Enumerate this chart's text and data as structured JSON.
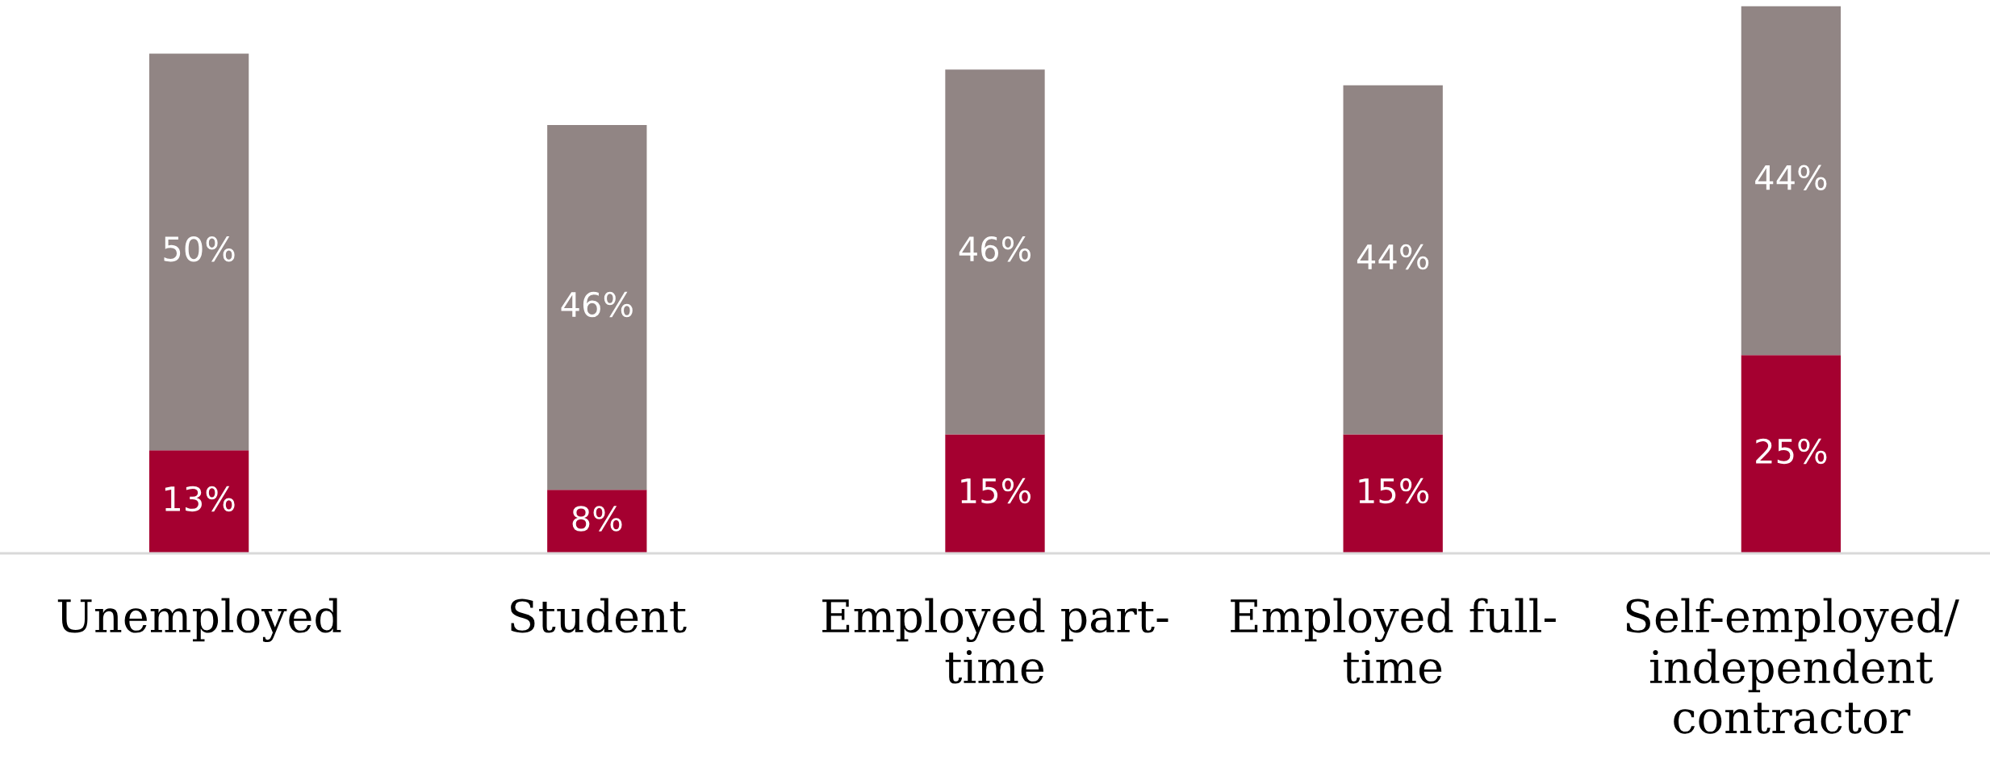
{
  "chart_data": {
    "type": "bar",
    "stacked": true,
    "categories": [
      "Unemployed",
      "Student",
      "Employed part-\ntime",
      "Employed full-\ntime",
      "Self-employed/\nindependent\ncontractor"
    ],
    "series": [
      {
        "color": "#a50030",
        "values": [
          13,
          8,
          15,
          15,
          25
        ],
        "value_labels": [
          "13%",
          "8%",
          "15%",
          "15%",
          "25%"
        ]
      },
      {
        "color": "#918584",
        "values": [
          50,
          46,
          46,
          44,
          44
        ],
        "value_labels": [
          "50%",
          "46%",
          "46%",
          "44%",
          "44%"
        ]
      }
    ]
  }
}
